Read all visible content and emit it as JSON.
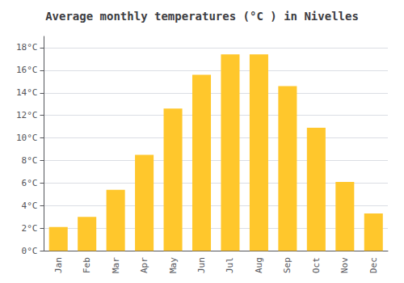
{
  "chart_data": {
    "type": "bar",
    "title": "Average monthly temperatures (°C ) in Nivelles",
    "categories": [
      "Jan",
      "Feb",
      "Mar",
      "Apr",
      "May",
      "Jun",
      "Jul",
      "Aug",
      "Sep",
      "Oct",
      "Nov",
      "Dec"
    ],
    "values": [
      2.1,
      3.0,
      5.4,
      8.5,
      12.6,
      15.6,
      17.4,
      17.4,
      14.6,
      10.9,
      6.1,
      3.3
    ],
    "color": "#FFC72C",
    "ylim": [
      0,
      19
    ],
    "yticks": [
      {
        "value": 0,
        "label": "0°C"
      },
      {
        "value": 2,
        "label": "2°C"
      },
      {
        "value": 4,
        "label": "4°C"
      },
      {
        "value": 6,
        "label": "6°C"
      },
      {
        "value": 8,
        "label": "8°C"
      },
      {
        "value": 10,
        "label": "10°C"
      },
      {
        "value": 12,
        "label": "12°C"
      },
      {
        "value": 14,
        "label": "14°C"
      },
      {
        "value": 16,
        "label": "16°C"
      },
      {
        "value": 18,
        "label": "18°C"
      }
    ],
    "grid": true
  }
}
